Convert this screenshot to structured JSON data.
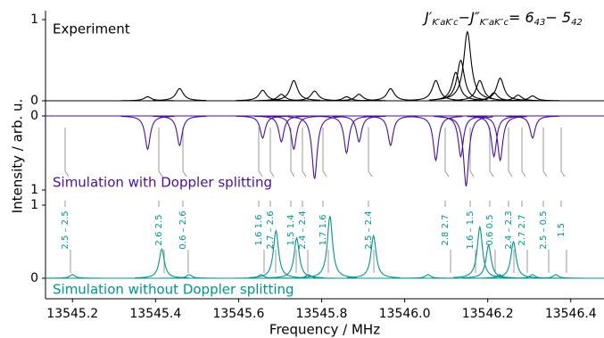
{
  "chart_data": [
    {
      "type": "line",
      "label": "Experiment",
      "color": "#000000",
      "xlim": [
        13545.135,
        13546.48
      ],
      "ylim": [
        0,
        1
      ],
      "yticks": [
        0,
        1
      ],
      "x": [
        13545.381,
        13545.458,
        13545.658,
        13545.703,
        13545.733,
        13545.783,
        13545.86,
        13545.89,
        13545.966,
        13546.075,
        13546.123,
        13546.135,
        13546.151,
        13546.181,
        13546.215,
        13546.23,
        13546.273,
        13546.308
      ],
      "values": [
        0.05,
        0.15,
        0.13,
        0.08,
        0.25,
        0.12,
        0.05,
        0.08,
        0.15,
        0.25,
        0.35,
        0.5,
        0.85,
        0.25,
        0.1,
        0.28,
        0.07,
        0.06
      ],
      "title_parts": [
        [
          "J′",
          "K′aK′c"
        ],
        [
          "−J″",
          "K″aK″c"
        ],
        [
          "= 6",
          "43"
        ],
        [
          "− 5",
          "42"
        ]
      ],
      "ylabel": "Intensity / arb. u."
    },
    {
      "type": "line",
      "label": "Simulation with Doppler splitting",
      "color": "#4b0e9c",
      "y_inverted": true,
      "xlim": [
        13545.135,
        13546.48
      ],
      "ylim": [
        0,
        1
      ],
      "yticks": [
        0,
        1
      ],
      "x": [
        13545.381,
        13545.458,
        13545.658,
        13545.703,
        13545.733,
        13545.783,
        13545.86,
        13545.89,
        13545.966,
        13546.075,
        13546.135,
        13546.148,
        13546.215,
        13546.23,
        13546.308
      ],
      "values": [
        0.45,
        0.4,
        0.3,
        0.35,
        0.45,
        0.85,
        0.5,
        0.35,
        0.4,
        0.6,
        0.55,
        0.95,
        0.55,
        0.6,
        0.3
      ]
    },
    {
      "type": "line",
      "label": "Simulation without Doppler splitting",
      "color": "#009490",
      "xlim": [
        13545.135,
        13546.48
      ],
      "ylim": [
        0,
        1
      ],
      "yticks": [
        0,
        1
      ],
      "xticks": [
        13545.2,
        13545.4,
        13545.6,
        13545.8,
        {
          "value": 13546.0,
          "label": "13546.0"
        },
        13546.2,
        13546.4
      ],
      "xlabel": "Frequency / MHz",
      "x": [
        13545.2,
        13545.415,
        13545.481,
        13545.654,
        13545.69,
        13545.74,
        13545.768,
        13545.82,
        13545.925,
        13546.056,
        13546.181,
        13546.202,
        13546.228,
        13546.262,
        13546.308,
        13546.364
      ],
      "values": [
        0.05,
        0.4,
        0.05,
        0.05,
        0.65,
        0.55,
        0.05,
        0.85,
        0.58,
        0.05,
        0.7,
        0.45,
        0.05,
        0.5,
        0.05,
        0.05
      ],
      "annotations": [
        "2.5 – 2.5",
        "2.6  2.5",
        "0.6 – 2.6",
        "1.6  1.6",
        "2.7 – 2.6",
        "1.5  1.4",
        "2.4 – 2.4",
        "1.7  1.6",
        "2.5 – 2.4",
        "2.8  2.7",
        "1.6 – 1.5",
        "0.6  0.5",
        "2.4 – 2.3",
        "2.7  2.7",
        "2.5 – 0.5",
        "1.5"
      ]
    }
  ]
}
